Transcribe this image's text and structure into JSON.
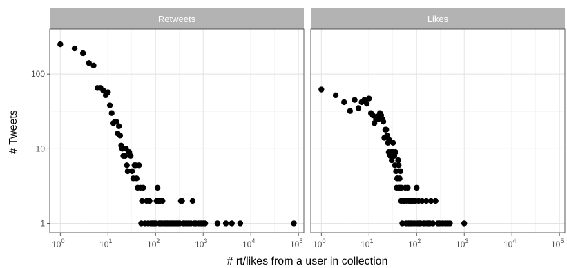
{
  "chart_data": {
    "type": "scatter",
    "xlabel": "# rt/likes from a user in collection",
    "ylabel": "# Tweets",
    "x_scale": "log10",
    "y_scale": "log10",
    "xlim": [
      0.6,
      130000
    ],
    "ylim": [
      0.75,
      400
    ],
    "x_ticks": [
      {
        "value": 1,
        "base": "10",
        "exp": "0"
      },
      {
        "value": 10,
        "base": "10",
        "exp": "1"
      },
      {
        "value": 100,
        "base": "10",
        "exp": "2"
      },
      {
        "value": 1000,
        "base": "10",
        "exp": "3"
      },
      {
        "value": 10000,
        "base": "10",
        "exp": "4"
      },
      {
        "value": 100000,
        "base": "10",
        "exp": "5"
      }
    ],
    "y_ticks": [
      {
        "value": 1,
        "label": "1"
      },
      {
        "value": 10,
        "label": "10"
      },
      {
        "value": 100,
        "label": "100"
      }
    ],
    "grid": true,
    "point_color": "#000000",
    "strip_color": "#b3b3b3",
    "panels": [
      {
        "title": "Retweets",
        "points": [
          [
            1,
            250
          ],
          [
            2,
            220
          ],
          [
            3,
            190
          ],
          [
            4,
            140
          ],
          [
            5,
            130
          ],
          [
            6,
            65
          ],
          [
            7,
            65
          ],
          [
            8,
            60
          ],
          [
            9,
            52
          ],
          [
            10,
            57
          ],
          [
            11,
            38
          ],
          [
            12,
            30
          ],
          [
            13,
            22
          ],
          [
            14,
            23
          ],
          [
            15,
            23
          ],
          [
            16,
            16
          ],
          [
            17,
            20
          ],
          [
            18,
            15
          ],
          [
            19,
            11
          ],
          [
            20,
            10
          ],
          [
            21,
            8
          ],
          [
            23,
            8
          ],
          [
            24,
            10
          ],
          [
            25,
            6
          ],
          [
            26,
            5
          ],
          [
            28,
            9
          ],
          [
            30,
            8
          ],
          [
            32,
            5
          ],
          [
            34,
            4
          ],
          [
            36,
            6
          ],
          [
            38,
            6
          ],
          [
            40,
            4
          ],
          [
            42,
            3
          ],
          [
            45,
            6
          ],
          [
            48,
            3
          ],
          [
            50,
            1
          ],
          [
            52,
            2
          ],
          [
            55,
            3
          ],
          [
            60,
            1
          ],
          [
            65,
            2
          ],
          [
            70,
            1
          ],
          [
            75,
            2
          ],
          [
            80,
            1
          ],
          [
            85,
            1
          ],
          [
            90,
            1
          ],
          [
            95,
            1
          ],
          [
            100,
            1
          ],
          [
            105,
            2
          ],
          [
            110,
            3
          ],
          [
            115,
            2
          ],
          [
            120,
            1
          ],
          [
            125,
            2
          ],
          [
            130,
            1
          ],
          [
            135,
            1
          ],
          [
            140,
            2
          ],
          [
            150,
            1
          ],
          [
            160,
            1
          ],
          [
            170,
            1
          ],
          [
            180,
            1
          ],
          [
            200,
            1
          ],
          [
            220,
            1
          ],
          [
            240,
            1
          ],
          [
            260,
            1
          ],
          [
            280,
            1
          ],
          [
            300,
            1
          ],
          [
            320,
            1
          ],
          [
            340,
            2
          ],
          [
            360,
            2
          ],
          [
            380,
            1
          ],
          [
            400,
            1
          ],
          [
            450,
            1
          ],
          [
            500,
            1
          ],
          [
            550,
            1
          ],
          [
            600,
            2
          ],
          [
            650,
            1
          ],
          [
            700,
            1
          ],
          [
            800,
            1
          ],
          [
            900,
            1
          ],
          [
            1000,
            1
          ],
          [
            1100,
            1
          ],
          [
            2000,
            1
          ],
          [
            3000,
            1
          ],
          [
            4000,
            1
          ],
          [
            6000,
            1
          ],
          [
            80000,
            1
          ]
        ]
      },
      {
        "title": "Likes",
        "points": [
          [
            1,
            62
          ],
          [
            2,
            52
          ],
          [
            3,
            42
          ],
          [
            4,
            32
          ],
          [
            5,
            45
          ],
          [
            6,
            35
          ],
          [
            7,
            42
          ],
          [
            8,
            45
          ],
          [
            9,
            40
          ],
          [
            10,
            47
          ],
          [
            11,
            30
          ],
          [
            12,
            28
          ],
          [
            13,
            22
          ],
          [
            14,
            25
          ],
          [
            15,
            27
          ],
          [
            16,
            25
          ],
          [
            17,
            30
          ],
          [
            18,
            28
          ],
          [
            19,
            25
          ],
          [
            20,
            23
          ],
          [
            21,
            14
          ],
          [
            22,
            18
          ],
          [
            23,
            18
          ],
          [
            24,
            15
          ],
          [
            25,
            12
          ],
          [
            26,
            9
          ],
          [
            27,
            13
          ],
          [
            28,
            8
          ],
          [
            29,
            9
          ],
          [
            30,
            7
          ],
          [
            31,
            9
          ],
          [
            32,
            12
          ],
          [
            33,
            9
          ],
          [
            34,
            8
          ],
          [
            35,
            6
          ],
          [
            36,
            9
          ],
          [
            37,
            5
          ],
          [
            38,
            3
          ],
          [
            39,
            4
          ],
          [
            40,
            4
          ],
          [
            41,
            7
          ],
          [
            42,
            6
          ],
          [
            43,
            3
          ],
          [
            44,
            4
          ],
          [
            45,
            3
          ],
          [
            46,
            5
          ],
          [
            47,
            2
          ],
          [
            48,
            3
          ],
          [
            50,
            1
          ],
          [
            52,
            2
          ],
          [
            55,
            2
          ],
          [
            58,
            3
          ],
          [
            60,
            1
          ],
          [
            62,
            2
          ],
          [
            65,
            3
          ],
          [
            68,
            1
          ],
          [
            70,
            2
          ],
          [
            72,
            2
          ],
          [
            75,
            1
          ],
          [
            78,
            2
          ],
          [
            80,
            1
          ],
          [
            85,
            2
          ],
          [
            90,
            1
          ],
          [
            95,
            2
          ],
          [
            100,
            3
          ],
          [
            105,
            1
          ],
          [
            110,
            2
          ],
          [
            115,
            1
          ],
          [
            120,
            1
          ],
          [
            130,
            2
          ],
          [
            140,
            1
          ],
          [
            150,
            1
          ],
          [
            160,
            2
          ],
          [
            170,
            1
          ],
          [
            180,
            1
          ],
          [
            190,
            1
          ],
          [
            200,
            2
          ],
          [
            220,
            1
          ],
          [
            250,
            2
          ],
          [
            280,
            1
          ],
          [
            300,
            1
          ],
          [
            350,
            1
          ],
          [
            400,
            1
          ],
          [
            450,
            1
          ],
          [
            500,
            1
          ],
          [
            1000,
            1
          ]
        ]
      }
    ]
  }
}
